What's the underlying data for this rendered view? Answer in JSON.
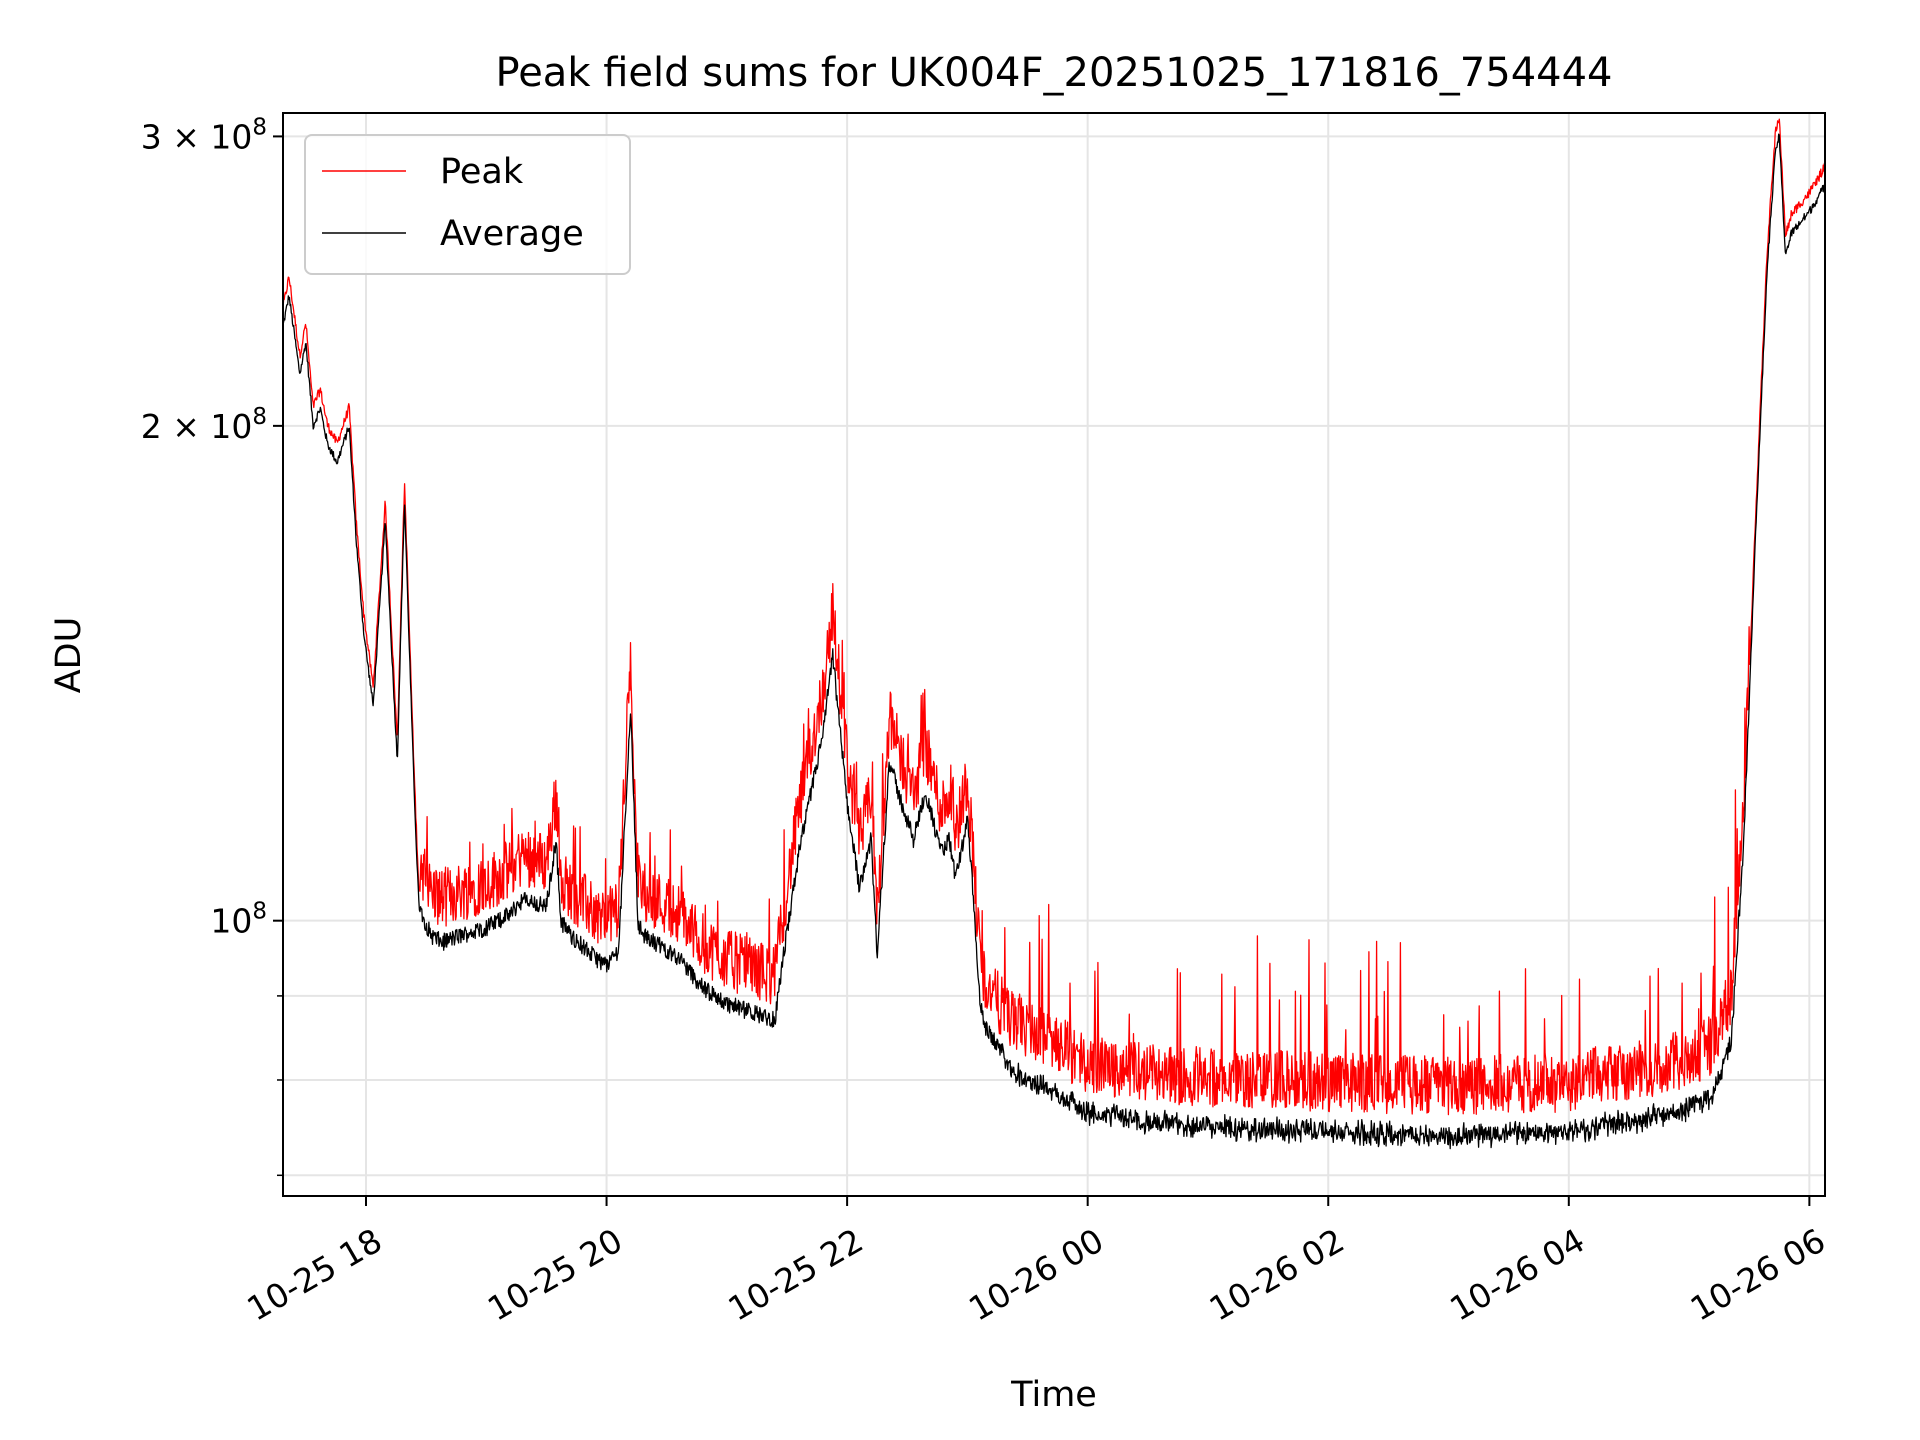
{
  "chart_data": {
    "type": "line",
    "title": "Peak field sums for UK004F_20251025_171816_754444",
    "xlabel": "Time",
    "ylabel": "ADU",
    "yscale": "log",
    "ylim": [
      68000000,
      310000000
    ],
    "xlim_hours": [
      17.31,
      30.13
    ],
    "x_ticks": [
      {
        "hour": 18,
        "label": "10-25 18"
      },
      {
        "hour": 20,
        "label": "10-25 20"
      },
      {
        "hour": 22,
        "label": "10-25 22"
      },
      {
        "hour": 24,
        "label": "10-26 00"
      },
      {
        "hour": 26,
        "label": "10-26 02"
      },
      {
        "hour": 28,
        "label": "10-26 04"
      },
      {
        "hour": 30,
        "label": "10-26 06"
      }
    ],
    "y_major_ticks": [
      {
        "value": 100000000,
        "base": "10",
        "exp": "8",
        "coef": ""
      },
      {
        "value": 200000000,
        "base": "10",
        "exp": "8",
        "coef": "2 × "
      },
      {
        "value": 300000000,
        "base": "10",
        "exp": "8",
        "coef": "3 × "
      }
    ],
    "y_minor_ticks": [
      70000000,
      80000000,
      90000000
    ],
    "grid": true,
    "legend_position": "top-left",
    "series": [
      {
        "name": "Peak",
        "color": "#ff0000",
        "noise_fraction": 0.09
      },
      {
        "name": "Average",
        "color": "#000000",
        "noise_fraction": 0.02
      }
    ],
    "baseline_points": {
      "hours": [
        17.31,
        17.36,
        17.45,
        17.5,
        17.56,
        17.62,
        17.68,
        17.76,
        17.86,
        17.92,
        17.98,
        18.06,
        18.1,
        18.16,
        18.26,
        18.32,
        18.4,
        18.44,
        18.54,
        18.63,
        18.8,
        19.0,
        19.2,
        19.3,
        19.5,
        19.58,
        19.62,
        19.7,
        19.9,
        20.0,
        20.1,
        20.2,
        20.26,
        20.3,
        20.6,
        20.8,
        21.0,
        21.2,
        21.4,
        21.45,
        21.6,
        21.8,
        21.88,
        22.0,
        22.1,
        22.2,
        22.25,
        22.35,
        22.42,
        22.55,
        22.65,
        22.78,
        22.85,
        22.9,
        23.0,
        23.05,
        23.1,
        23.15,
        23.25,
        23.35,
        23.6,
        24.0,
        24.5,
        25.0,
        26.0,
        27.0,
        28.0,
        28.5,
        29.0,
        29.2,
        29.35,
        29.45,
        29.55,
        29.65,
        29.72,
        29.75,
        29.8,
        29.83,
        29.85,
        30.0,
        30.13
      ],
      "values": [
        230000000,
        240000000,
        215000000,
        225000000,
        200000000,
        205000000,
        195000000,
        190000000,
        200000000,
        170000000,
        150000000,
        135000000,
        150000000,
        175000000,
        125000000,
        180000000,
        120000000,
        102000000,
        98000000,
        97000000,
        98000000,
        99000000,
        101000000,
        103000000,
        102000000,
        112000000,
        100000000,
        98000000,
        95000000,
        94000000,
        96000000,
        135000000,
        100000000,
        98000000,
        95000000,
        91000000,
        89000000,
        88000000,
        87000000,
        93000000,
        110000000,
        130000000,
        145000000,
        118000000,
        105000000,
        112000000,
        95000000,
        125000000,
        120000000,
        112000000,
        120000000,
        110000000,
        112000000,
        106000000,
        115000000,
        103000000,
        90000000,
        86000000,
        84000000,
        82000000,
        80000000,
        77000000,
        76000000,
        75500000,
        75000000,
        74500000,
        75000000,
        76000000,
        77500000,
        79000000,
        85000000,
        110000000,
        170000000,
        250000000,
        295000000,
        300000000,
        255000000,
        258000000,
        262000000,
        270000000,
        280000000
      ]
    }
  }
}
